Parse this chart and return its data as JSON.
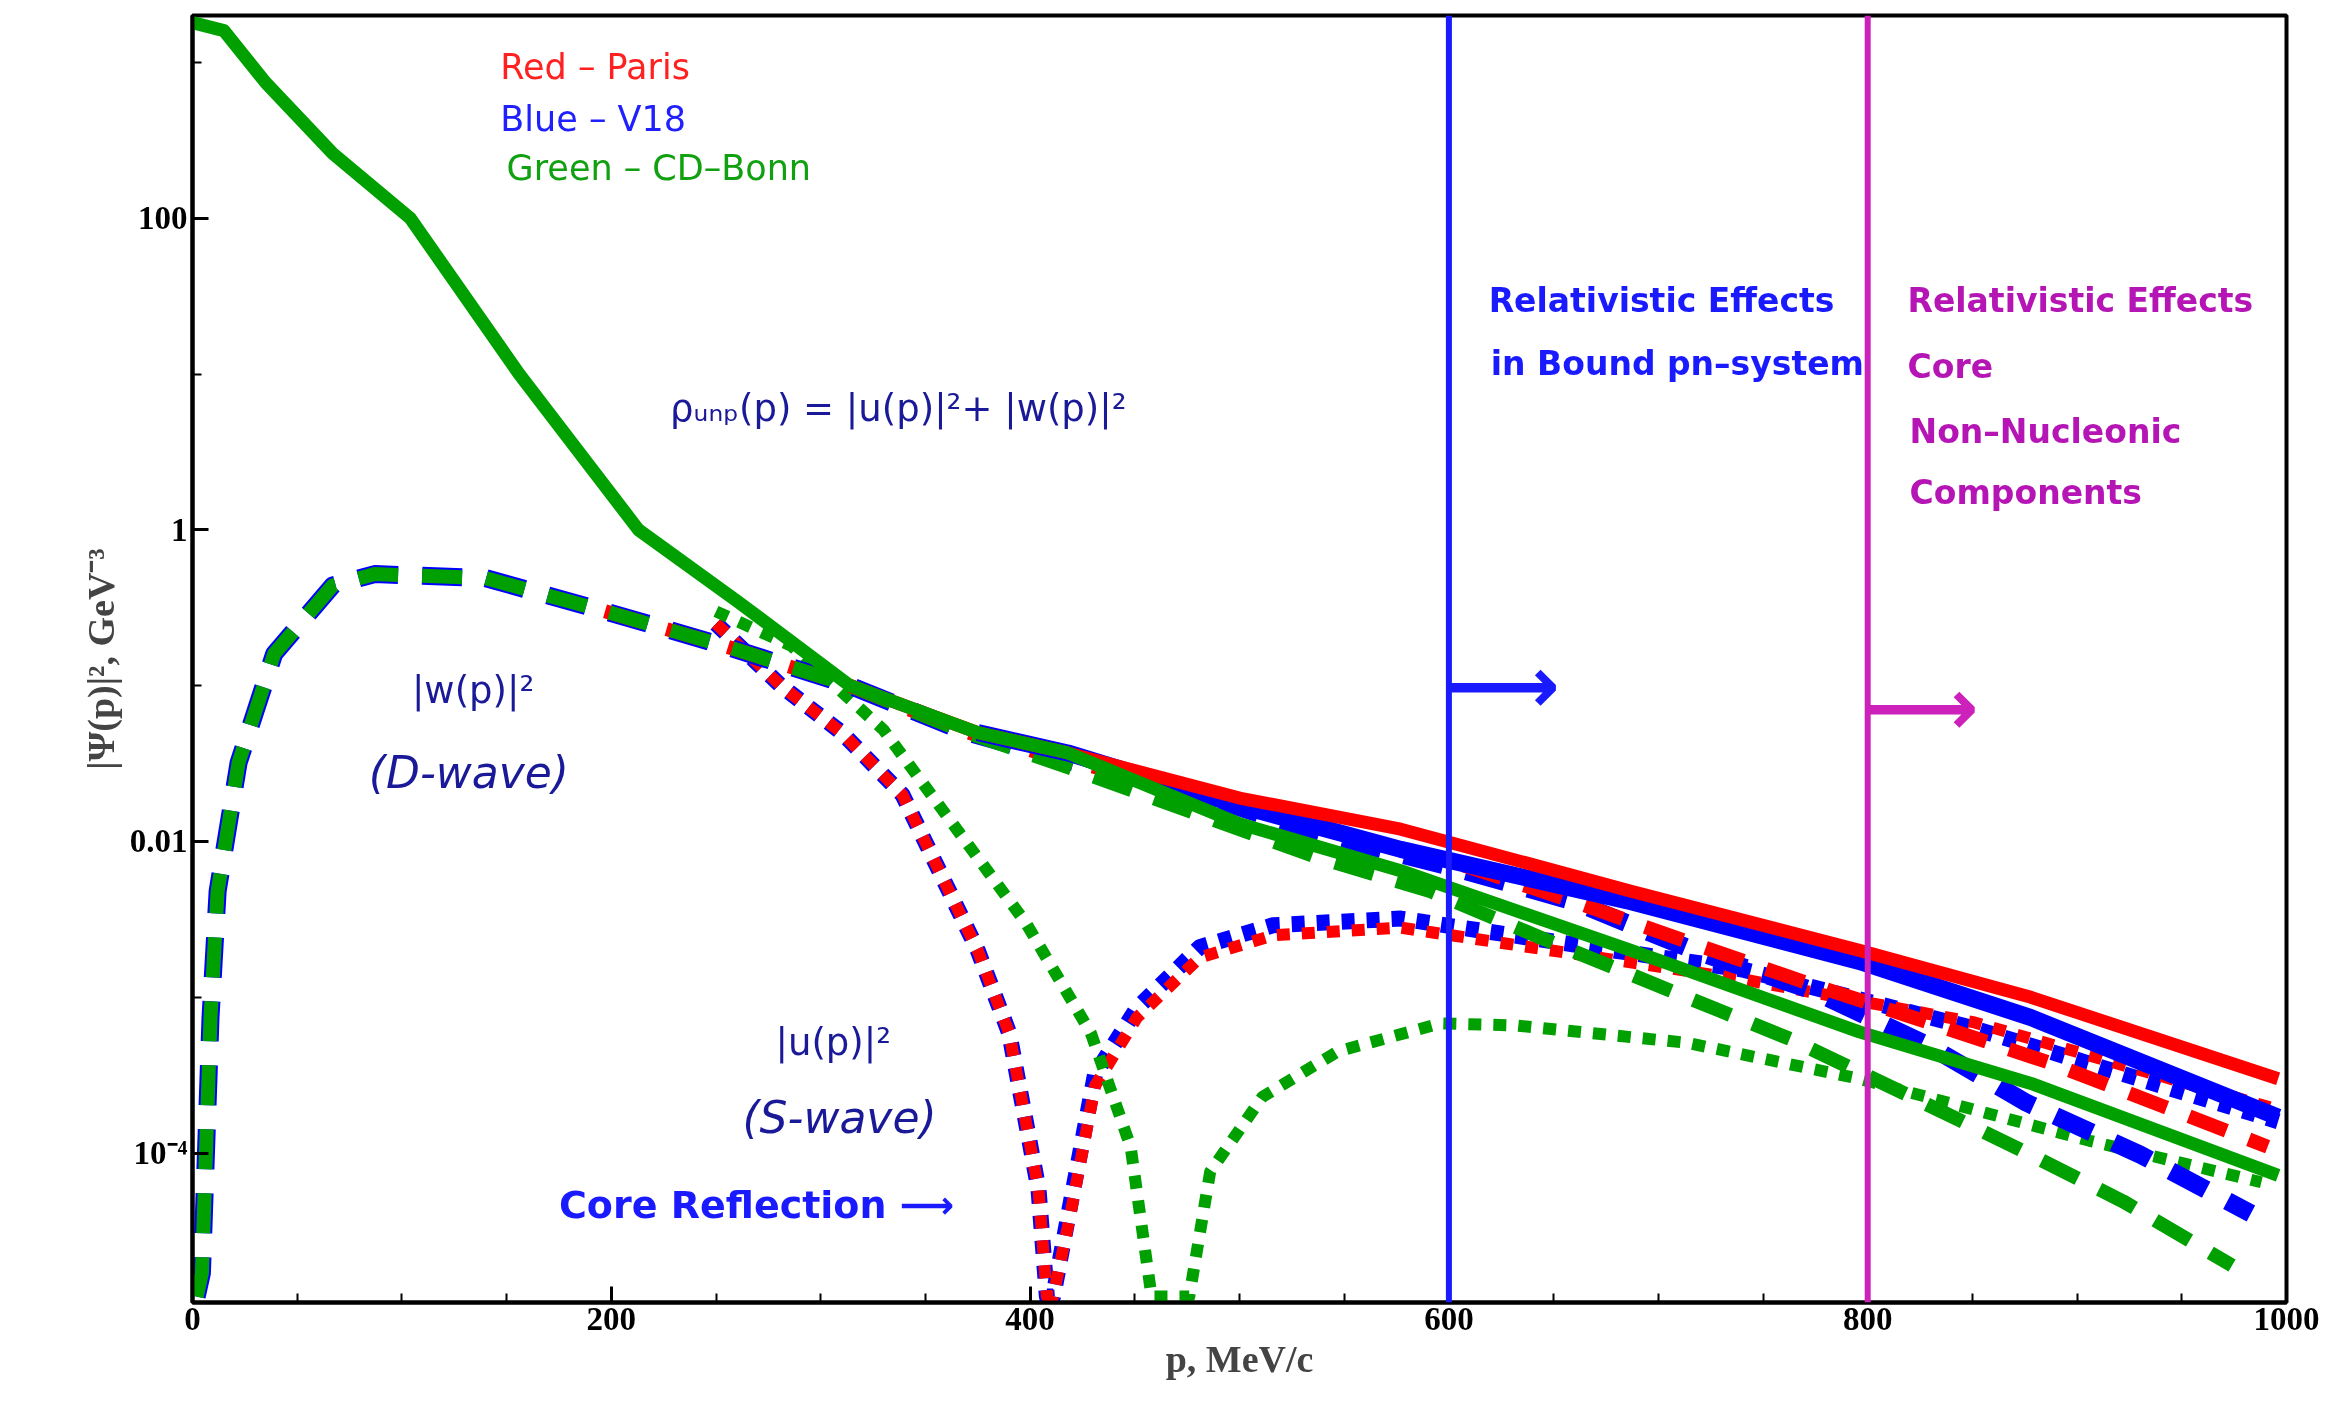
{
  "chart_data": {
    "type": "line",
    "xlabel": "p, MeV/c",
    "ylabel": "|Ψ(p)|², GeV⁻³",
    "xlim": [
      0,
      1000
    ],
    "xticks": [
      0,
      200,
      400,
      600,
      800,
      1000
    ],
    "ylim": [
      1.1e-05,
      2000
    ],
    "yticks": [
      100,
      1,
      0.01,
      {
        "value": 0.0001,
        "label": "10⁻⁴"
      }
    ],
    "log": "y",
    "grid": false,
    "marker": "none",
    "series": [
      {
        "color": "#0000ff",
        "line_style": "dotted",
        "x": [
          250,
          281,
          310,
          339,
          375,
          390,
          404,
          408,
          411,
          419,
          431,
          451,
          481,
          516,
          577,
          741,
          851,
          996
        ],
        "values": [
          0.25,
          0.1,
          0.05,
          0.02,
          0.002,
          0.00059,
          5.9e-05,
          1.2e-05,
          1.2e-05,
          4.5e-05,
          0.00032,
          0.00085,
          0.0021,
          0.0029,
          0.0032,
          0.0015,
          0.00063,
          0.00016
        ]
      },
      {
        "color": "#ff0000",
        "line_style": "dotted",
        "x": [
          250,
          281,
          310,
          339,
          375,
          390,
          404,
          408,
          411,
          419,
          431,
          451,
          481,
          516,
          577,
          741,
          851,
          996
        ],
        "values": [
          0.25,
          0.1,
          0.05,
          0.02,
          0.002,
          0.00059,
          5.9e-05,
          1.2e-05,
          1.2e-05,
          3.9e-05,
          0.00027,
          0.00074,
          0.0018,
          0.0025,
          0.0028,
          0.0013,
          0.00069,
          0.00019
        ]
      },
      {
        "color": "#00a000",
        "line_style": "dotted",
        "x": [
          250,
          286,
          330,
          363,
          398,
          429,
          448,
          458,
          476,
          486,
          511,
          547,
          596,
          632,
          714,
          796,
          906,
          988
        ],
        "values": [
          0.3,
          0.18,
          0.052,
          0.013,
          0.003,
          0.00059,
          0.00011,
          1.2e-05,
          1.2e-05,
          7.6e-05,
          0.00023,
          0.00045,
          0.00068,
          0.00066,
          0.00051,
          0.0003,
          0.00012,
          6.5e-05
        ]
      },
      {
        "color": "#0000ff",
        "line_style": "dashed",
        "x": [
          2,
          4.5,
          8.6,
          12,
          22,
          39,
          67,
          87,
          140,
          197,
          254,
          314,
          368,
          418,
          486,
          541,
          602,
          660,
          717,
          774,
          829,
          876,
          930,
          983
        ],
        "values": [
          1.2e-05,
          1.7e-05,
          0.00074,
          0.0048,
          0.032,
          0.16,
          0.44,
          0.52,
          0.49,
          0.3,
          0.18,
          0.1,
          0.051,
          0.033,
          0.019,
          0.011,
          0.0068,
          0.0041,
          0.002,
          0.0011,
          0.00049,
          0.00021,
          9.8e-05,
          4.1e-05
        ]
      },
      {
        "color": "#ff0000",
        "line_style": "dashed",
        "x": [
          197,
          254,
          314,
          368,
          418,
          486,
          541,
          602,
          660,
          717,
          774,
          829,
          887,
          941,
          991
        ],
        "values": [
          0.3,
          0.18,
          0.1,
          0.051,
          0.033,
          0.02,
          0.012,
          0.0074,
          0.0041,
          0.0022,
          0.0012,
          0.00069,
          0.00038,
          0.0002,
          0.00011
        ]
      },
      {
        "color": "#00a000",
        "line_style": "dashed",
        "x": [
          2,
          4.5,
          8.6,
          12,
          22,
          39,
          67,
          87,
          140,
          197,
          254,
          314,
          368,
          418,
          535,
          591,
          651,
          706,
          763,
          818,
          870,
          922,
          974
        ],
        "values": [
          1.2e-05,
          1.7e-05,
          0.00074,
          0.0048,
          0.032,
          0.16,
          0.44,
          0.52,
          0.49,
          0.3,
          0.18,
          0.1,
          0.051,
          0.03,
          0.0081,
          0.0048,
          0.0022,
          0.0011,
          0.00054,
          0.00024,
          0.00011,
          4.9e-05,
          1.9e-05
        ]
      },
      {
        "color": "#0000ff",
        "line_style": "solid",
        "x": [
          375,
          418,
          500,
          577,
          687,
          796,
          878,
          996
        ],
        "values": [
          0.05,
          0.037,
          0.017,
          0.0089,
          0.0041,
          0.0017,
          0.00074,
          0.00017
        ]
      },
      {
        "color": "#ff0000",
        "line_style": "solid",
        "x": [
          314,
          375,
          418,
          500,
          577,
          687,
          796,
          878,
          996
        ],
        "values": [
          0.1,
          0.05,
          0.037,
          0.019,
          0.012,
          0.0048,
          0.002,
          0.001,
          0.0003
        ]
      },
      {
        "color": "#00a000",
        "line_style": "solid",
        "x": [
          0,
          15,
          35,
          67,
          104,
          156,
          213,
          260,
          314,
          375,
          418,
          500,
          577,
          687,
          796,
          878,
          996
        ],
        "values": [
          1800,
          1600,
          740,
          260,
          100,
          10,
          1.0,
          0.35,
          0.1,
          0.05,
          0.037,
          0.013,
          0.0065,
          0.002,
          0.0006,
          0.00028,
          7.2e-05
        ]
      }
    ],
    "ref_lines": [
      {
        "axis": "x",
        "value": 600,
        "color": "#1a1aff",
        "label": "⟶"
      },
      {
        "axis": "x",
        "value": 800,
        "color": "#cc22bb",
        "label": "⟶"
      }
    ],
    "annotations": [
      "Red – Paris",
      "Blue – V18",
      "Green – CD–Bonn",
      "ρᵤₙₚ(p) = |u(p)|²+ |w(p)|²",
      "|w(p)|²",
      "(D-wave)",
      "|u(p)|²",
      "(S-wave)",
      "Core Reflection ⟶",
      "Relativistic Effects",
      "in Bound pn–system",
      "Relativistic Effects",
      "Core",
      "Non–Nucleonic",
      "Components"
    ]
  }
}
